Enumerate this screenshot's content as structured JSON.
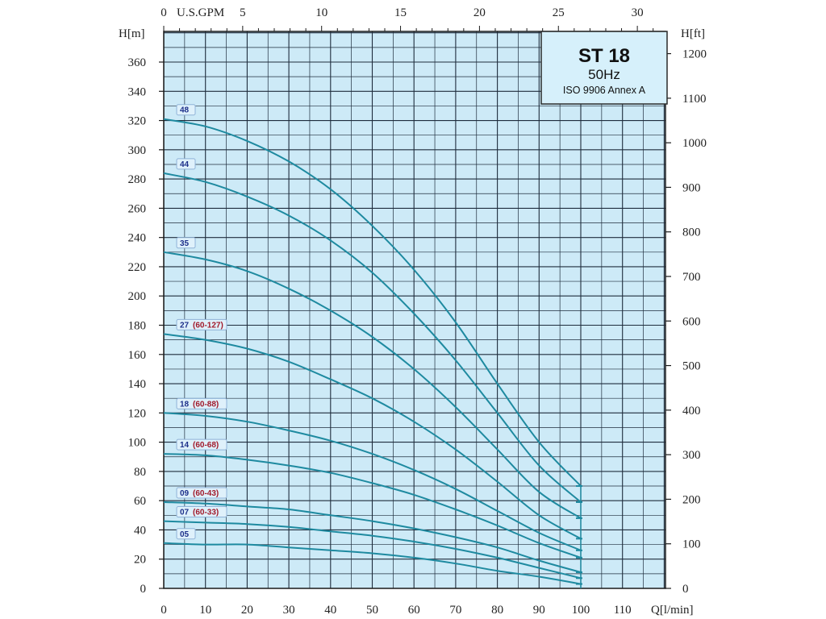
{
  "chart_data": {
    "type": "line",
    "title": "ST 18",
    "subtitle": "50Hz",
    "standard": "ISO 9906 Annex A",
    "xlabel": "Q[l/min]",
    "ylabel": "H[m]",
    "y2label": "H[ft]",
    "x2label": "U.S.GPM",
    "xlim": [
      0,
      120
    ],
    "ylim": [
      0,
      380
    ],
    "x_ticks": [
      0,
      10,
      20,
      30,
      40,
      50,
      60,
      70,
      80,
      90,
      100,
      110
    ],
    "y_ticks": [
      0,
      20,
      40,
      60,
      80,
      100,
      120,
      140,
      160,
      180,
      200,
      220,
      240,
      260,
      280,
      300,
      320,
      340,
      360
    ],
    "y2_ticks": [
      0,
      100,
      200,
      300,
      400,
      500,
      600,
      700,
      800,
      900,
      1000,
      1100,
      1200
    ],
    "x2_ticks": [
      0,
      5,
      10,
      15,
      20,
      25,
      30
    ],
    "grid": true,
    "legend": "labels on curves",
    "series": [
      {
        "name": "48",
        "label_num": "48",
        "label_range": "",
        "x": [
          0,
          10,
          20,
          30,
          40,
          50,
          60,
          70,
          80,
          90,
          100
        ],
        "values": [
          321,
          316,
          306,
          292,
          273,
          248,
          218,
          182,
          140,
          100,
          70
        ]
      },
      {
        "name": "44",
        "label_num": "44",
        "label_range": "",
        "x": [
          0,
          10,
          20,
          30,
          40,
          50,
          60,
          70,
          80,
          90,
          100
        ],
        "values": [
          284,
          278,
          268,
          255,
          238,
          216,
          188,
          156,
          120,
          84,
          59
        ]
      },
      {
        "name": "35",
        "label_num": "35",
        "label_range": "",
        "x": [
          0,
          10,
          20,
          30,
          40,
          50,
          60,
          70,
          80,
          90,
          100
        ],
        "values": [
          230,
          225,
          217,
          205,
          190,
          172,
          150,
          124,
          95,
          66,
          48
        ]
      },
      {
        "name": "27 (60-127)",
        "label_num": "27",
        "label_range": "(60-127)",
        "x": [
          0,
          10,
          20,
          30,
          40,
          50,
          60,
          70,
          80,
          90,
          100
        ],
        "values": [
          174,
          170,
          164,
          155,
          143,
          130,
          114,
          95,
          73,
          50,
          34
        ]
      },
      {
        "name": "18 (60-88)",
        "label_num": "18",
        "label_range": "(60-88)",
        "x": [
          0,
          10,
          20,
          30,
          40,
          50,
          60,
          70,
          80,
          90,
          100
        ],
        "values": [
          120,
          118,
          114,
          108,
          101,
          92,
          81,
          68,
          53,
          38,
          26
        ]
      },
      {
        "name": "14 (60-68)",
        "label_num": "14",
        "label_range": "(60-68)",
        "x": [
          0,
          10,
          20,
          30,
          40,
          50,
          60,
          70,
          80,
          90,
          100
        ],
        "values": [
          92,
          91,
          88,
          84,
          79,
          72,
          64,
          54,
          43,
          31,
          21
        ]
      },
      {
        "name": "09 (60-43)",
        "label_num": "09",
        "label_range": "(60-43)",
        "x": [
          0,
          10,
          20,
          30,
          40,
          50,
          60,
          70,
          80,
          90,
          100
        ],
        "values": [
          59,
          58,
          56,
          54,
          50,
          46,
          41,
          35,
          28,
          19,
          11
        ]
      },
      {
        "name": "07 (60-33)",
        "label_num": "07",
        "label_range": "(60-33)",
        "x": [
          0,
          10,
          20,
          30,
          40,
          50,
          60,
          70,
          80,
          90,
          100
        ],
        "values": [
          46,
          45,
          44,
          42,
          39,
          36,
          32,
          27,
          21,
          14,
          7
        ]
      },
      {
        "name": "05",
        "label_num": "05",
        "label_range": "",
        "x": [
          0,
          10,
          20,
          30,
          40,
          50,
          60,
          70,
          80,
          90,
          100
        ],
        "values": [
          31,
          30,
          30,
          28,
          26,
          24,
          21,
          17,
          12,
          8,
          3
        ]
      }
    ],
    "colors": {
      "plot_bg": "#cdeaf7",
      "grid": "#1f2d3d",
      "curve": "#1e8aa0",
      "badge_fill": "#dff1fb",
      "badge_num": "#1c2f8a",
      "badge_range": "#a11a2b"
    }
  }
}
